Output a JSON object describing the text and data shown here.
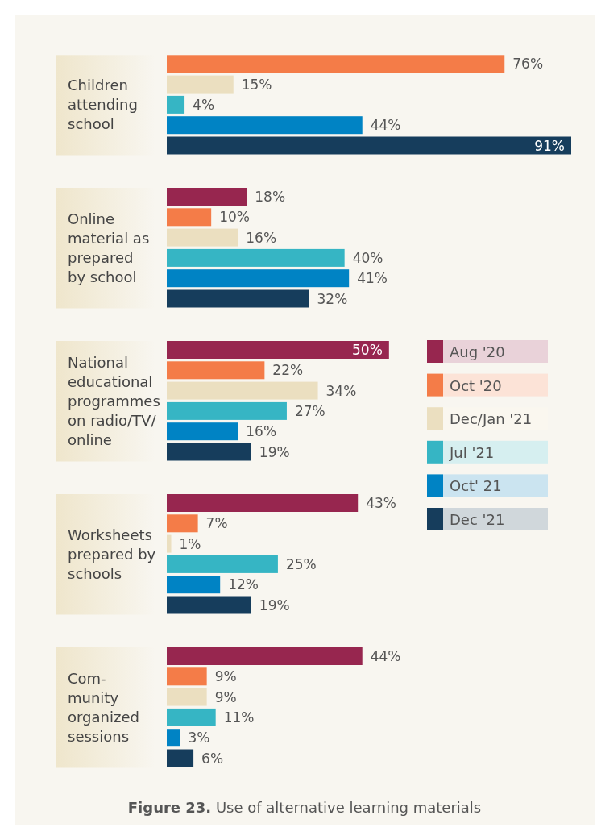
{
  "chart_data": {
    "type": "bar",
    "orientation": "horizontal",
    "title": "Figure 23.",
    "subtitle": "Use of alternative learning materials",
    "categories": [
      "Children\nattending\nschool",
      "Online\nmaterial as\nprepared\nby school",
      "National\neducational\nprogrammes\non radio/TV/\nonline",
      "Worksheets\nprepared by\nschools",
      "Com-\nmunity\norganized\nsessions"
    ],
    "series": [
      {
        "name": "Aug '20",
        "color": "#97264f",
        "values": [
          null,
          18,
          50,
          43,
          44
        ],
        "value_labels": [
          null,
          "18%",
          "50%",
          "43%",
          "44%"
        ]
      },
      {
        "name": "Oct '20",
        "color": "#f47c48",
        "values": [
          76,
          10,
          22,
          7,
          9
        ],
        "value_labels": [
          "76%",
          "10%",
          "22%",
          "7%",
          "9%"
        ]
      },
      {
        "name": "Dec/Jan '21",
        "color": "#ebdfc0",
        "values": [
          15,
          16,
          34,
          1,
          9
        ],
        "value_labels": [
          "15%",
          "16%",
          "34%",
          "1%",
          "9%"
        ]
      },
      {
        "name": "Jul '21",
        "color": "#36b5c4",
        "values": [
          4,
          40,
          27,
          25,
          11
        ],
        "value_labels": [
          "4%",
          "40%",
          "27%",
          "25%",
          "11%"
        ]
      },
      {
        "name": "Oct' 21",
        "color": "#0083c4",
        "values": [
          44,
          41,
          16,
          12,
          3
        ],
        "value_labels": [
          "44%",
          "41%",
          "16%",
          "12%",
          "3%"
        ]
      },
      {
        "name": "Dec '21",
        "color": "#163d5c",
        "values": [
          91,
          32,
          19,
          19,
          6
        ],
        "value_labels": [
          "91%",
          "32%",
          "19%",
          "19%",
          "6%"
        ]
      }
    ],
    "legend": "right"
  }
}
